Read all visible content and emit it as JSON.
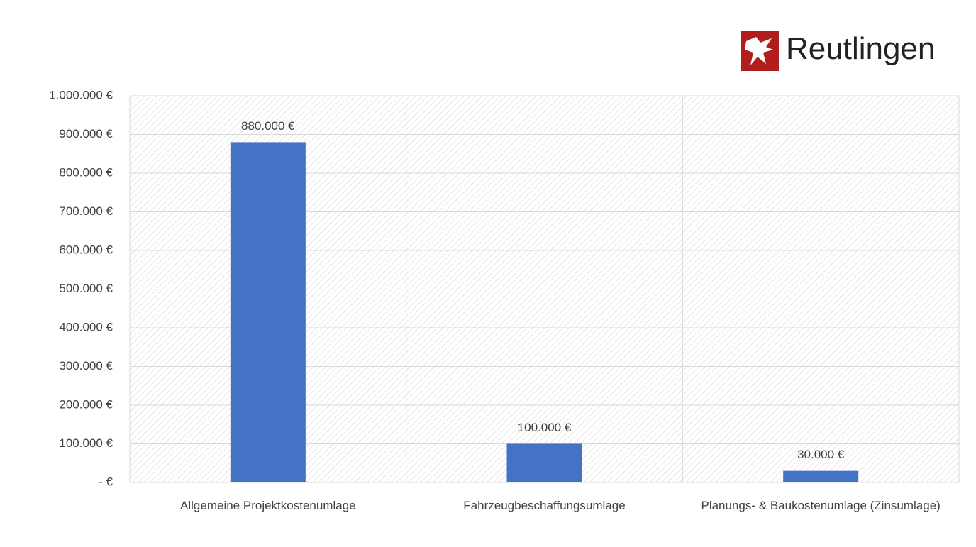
{
  "logo": {
    "text": "Reutlingen"
  },
  "chart_data": {
    "type": "bar",
    "categories": [
      "Allgemeine Projektkostenumlage",
      "Fahrzeugbeschaffungsumlage",
      "Planungs- & Baukostenumlage (Zinsumlage)"
    ],
    "values": [
      880000,
      100000,
      30000
    ],
    "value_labels": [
      "880.000 €",
      "100.000 €",
      "30.000 €"
    ],
    "color": "#4472c4",
    "ylim": [
      0,
      1000000
    ],
    "yticks": [
      {
        "value": 0,
        "label": "- €"
      },
      {
        "value": 100000,
        "label": "100.000 €"
      },
      {
        "value": 200000,
        "label": "200.000 €"
      },
      {
        "value": 300000,
        "label": "300.000 €"
      },
      {
        "value": 400000,
        "label": "400.000 €"
      },
      {
        "value": 500000,
        "label": "500.000 €"
      },
      {
        "value": 600000,
        "label": "600.000 €"
      },
      {
        "value": 700000,
        "label": "700.000 €"
      },
      {
        "value": 800000,
        "label": "800.000 €"
      },
      {
        "value": 900000,
        "label": "900.000 €"
      },
      {
        "value": 1000000,
        "label": "1.000.000 €"
      }
    ],
    "grid": true
  }
}
